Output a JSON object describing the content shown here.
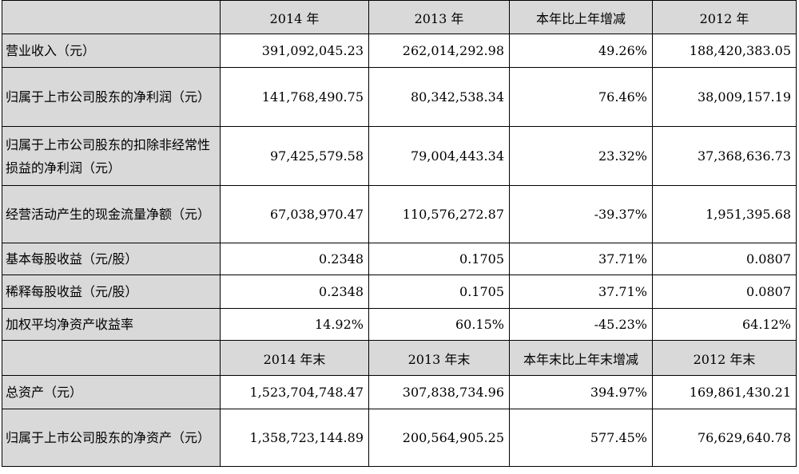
{
  "table": {
    "header1": [
      "",
      "2014 年",
      "2013 年",
      "本年比上年增减",
      "2012 年"
    ],
    "rows1": [
      {
        "label": "营业收入（元）",
        "values": [
          "391,092,045.23",
          "262,014,292.98",
          "49.26%",
          "188,420,383.05"
        ]
      },
      {
        "label": "归属于上市公司股东的净利润（元）",
        "values": [
          "141,768,490.75",
          "80,342,538.34",
          "76.46%",
          "38,009,157.19"
        ]
      },
      {
        "label": "归属于上市公司股东的扣除非经常性损益的净利润（元）",
        "values": [
          "97,425,579.58",
          "79,004,443.34",
          "23.32%",
          "37,368,636.73"
        ]
      },
      {
        "label": "经营活动产生的现金流量净额（元）",
        "values": [
          "67,038,970.47",
          "110,576,272.87",
          "-39.37%",
          "1,951,395.68"
        ]
      },
      {
        "label": "基本每股收益（元/股）",
        "values": [
          "0.2348",
          "0.1705",
          "37.71%",
          "0.0807"
        ]
      },
      {
        "label": "稀释每股收益（元/股）",
        "values": [
          "0.2348",
          "0.1705",
          "37.71%",
          "0.0807"
        ]
      },
      {
        "label": "加权平均净资产收益率",
        "values": [
          "14.92%",
          "60.15%",
          "-45.23%",
          "64.12%"
        ]
      }
    ],
    "header2": [
      "",
      "2014 年末",
      "2013 年末",
      "本年末比上年末增减",
      "2012 年末"
    ],
    "rows2": [
      {
        "label": "总资产（元）",
        "values": [
          "1,523,704,748.47",
          "307,838,734.96",
          "394.97%",
          "169,861,430.21"
        ]
      },
      {
        "label": "归属于上市公司股东的净资产（元）",
        "values": [
          "1,358,723,144.89",
          "200,564,905.25",
          "577.45%",
          "76,629,640.78"
        ]
      }
    ]
  }
}
